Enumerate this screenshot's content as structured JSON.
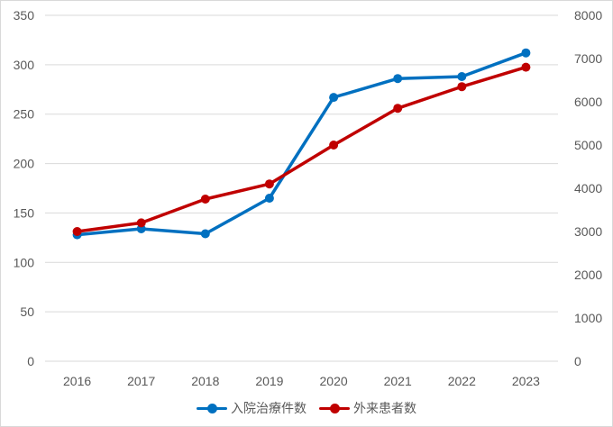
{
  "chart_data": {
    "type": "line",
    "title": "",
    "categories": [
      "2016",
      "2017",
      "2018",
      "2019",
      "2020",
      "2021",
      "2022",
      "2023"
    ],
    "series": [
      {
        "name": "入院治療件数",
        "axis": "left",
        "color": "#0070C0",
        "values": [
          128,
          134,
          129,
          165,
          267,
          286,
          288,
          312
        ]
      },
      {
        "name": "外来患者数",
        "axis": "right",
        "color": "#C00000",
        "values": [
          3000,
          3200,
          3750,
          4100,
          5000,
          5850,
          6350,
          6800
        ]
      }
    ],
    "left_axis": {
      "min": 0,
      "max": 350,
      "ticks": [
        0,
        50,
        100,
        150,
        200,
        250,
        300,
        350
      ]
    },
    "right_axis": {
      "min": 0,
      "max": 8000,
      "ticks": [
        0,
        1000,
        2000,
        3000,
        4000,
        5000,
        6000,
        7000,
        8000
      ]
    },
    "xlabel": "",
    "ylabel": "",
    "grid": true,
    "legend_position": "bottom",
    "colors": {
      "gridline": "#D9D9D9",
      "tick_label": "#595959",
      "border": "#D9D9D9",
      "background": "#FFFFFF"
    }
  }
}
